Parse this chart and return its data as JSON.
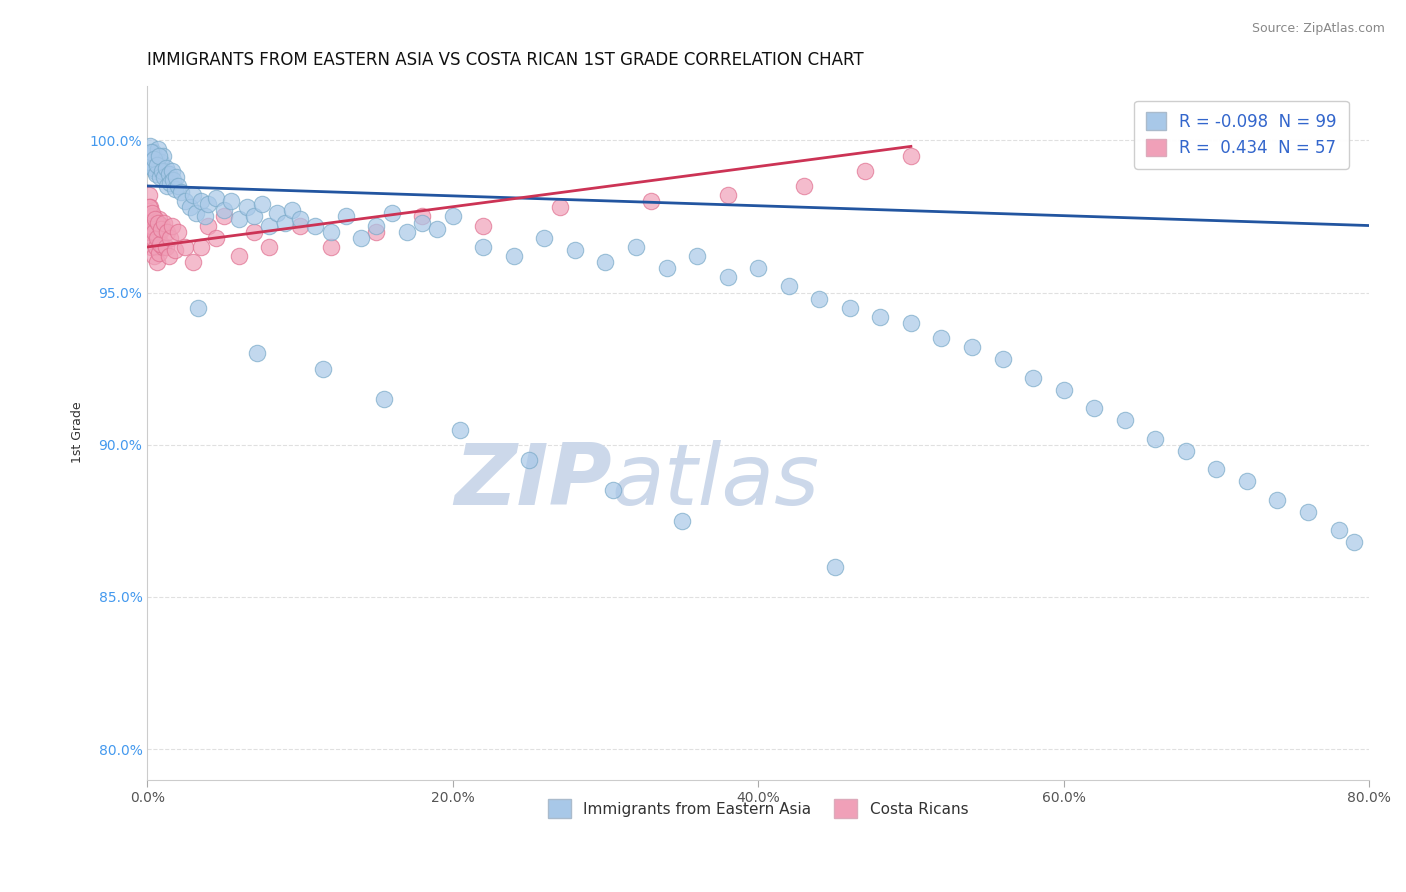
{
  "title": "IMMIGRANTS FROM EASTERN ASIA VS COSTA RICAN 1ST GRADE CORRELATION CHART",
  "source": "Source: ZipAtlas.com",
  "ylabel": "1st Grade",
  "xlim": [
    0.0,
    80.0
  ],
  "ylim": [
    79.0,
    101.8
  ],
  "x_ticks": [
    0.0,
    20.0,
    40.0,
    60.0,
    80.0
  ],
  "x_tick_labels": [
    "0.0%",
    "20.0%",
    "40.0%",
    "60.0%",
    "80.0%"
  ],
  "y_ticks": [
    80.0,
    85.0,
    90.0,
    95.0,
    100.0
  ],
  "y_tick_labels": [
    "80.0%",
    "85.0%",
    "90.0%",
    "95.0%",
    "100.0%"
  ],
  "series_blue": {
    "label": "Immigrants from Eastern Asia",
    "color": "#a8c8e8",
    "edge_color": "#7aaac8",
    "R": -0.098,
    "N": 99,
    "line_color": "#2255a0",
    "x": [
      0.1,
      0.2,
      0.3,
      0.4,
      0.5,
      0.6,
      0.7,
      0.8,
      0.9,
      1.0,
      0.15,
      0.25,
      0.35,
      0.45,
      0.55,
      0.65,
      0.75,
      0.85,
      0.95,
      1.1,
      1.2,
      1.3,
      1.4,
      1.5,
      1.6,
      1.7,
      1.8,
      1.9,
      2.0,
      2.2,
      2.5,
      2.8,
      3.0,
      3.2,
      3.5,
      3.8,
      4.0,
      4.5,
      5.0,
      5.5,
      6.0,
      6.5,
      7.0,
      7.5,
      8.0,
      8.5,
      9.0,
      9.5,
      10.0,
      11.0,
      12.0,
      13.0,
      14.0,
      15.0,
      16.0,
      17.0,
      18.0,
      19.0,
      20.0,
      22.0,
      24.0,
      26.0,
      28.0,
      30.0,
      32.0,
      34.0,
      36.0,
      38.0,
      40.0,
      42.0,
      44.0,
      46.0,
      48.0,
      50.0,
      52.0,
      54.0,
      56.0,
      58.0,
      60.0,
      62.0,
      64.0,
      66.0,
      68.0,
      70.0,
      72.0,
      74.0,
      76.0,
      78.0,
      79.0,
      3.3,
      7.2,
      11.5,
      15.5,
      20.5,
      25.0,
      30.5,
      35.0,
      45.0
    ],
    "y": [
      99.5,
      99.8,
      99.2,
      99.6,
      99.0,
      99.4,
      99.7,
      99.1,
      99.3,
      99.5,
      99.3,
      99.6,
      99.1,
      99.4,
      98.9,
      99.2,
      99.5,
      98.8,
      99.0,
      98.8,
      99.1,
      98.5,
      98.9,
      98.6,
      99.0,
      98.7,
      98.4,
      98.8,
      98.5,
      98.3,
      98.0,
      97.8,
      98.2,
      97.6,
      98.0,
      97.5,
      97.9,
      98.1,
      97.7,
      98.0,
      97.4,
      97.8,
      97.5,
      97.9,
      97.2,
      97.6,
      97.3,
      97.7,
      97.4,
      97.2,
      97.0,
      97.5,
      96.8,
      97.2,
      97.6,
      97.0,
      97.3,
      97.1,
      97.5,
      96.5,
      96.2,
      96.8,
      96.4,
      96.0,
      96.5,
      95.8,
      96.2,
      95.5,
      95.8,
      95.2,
      94.8,
      94.5,
      94.2,
      94.0,
      93.5,
      93.2,
      92.8,
      92.2,
      91.8,
      91.2,
      90.8,
      90.2,
      89.8,
      89.2,
      88.8,
      88.2,
      87.8,
      87.2,
      86.8,
      94.5,
      93.0,
      92.5,
      91.5,
      90.5,
      89.5,
      88.5,
      87.5,
      86.0
    ]
  },
  "series_pink": {
    "label": "Costa Ricans",
    "color": "#f0a0b8",
    "edge_color": "#e07090",
    "R": 0.434,
    "N": 57,
    "line_color": "#cc3355",
    "x": [
      0.05,
      0.1,
      0.15,
      0.2,
      0.25,
      0.3,
      0.35,
      0.4,
      0.45,
      0.5,
      0.55,
      0.6,
      0.65,
      0.7,
      0.75,
      0.8,
      0.85,
      0.9,
      0.95,
      1.0,
      0.12,
      0.22,
      0.32,
      0.42,
      0.52,
      0.62,
      0.72,
      0.82,
      0.92,
      1.1,
      1.2,
      1.3,
      1.4,
      1.5,
      1.6,
      1.8,
      2.0,
      2.5,
      3.0,
      3.5,
      4.0,
      4.5,
      5.0,
      6.0,
      7.0,
      8.0,
      10.0,
      12.0,
      15.0,
      18.0,
      22.0,
      27.0,
      33.0,
      38.0,
      43.0,
      47.0,
      50.0
    ],
    "y": [
      97.5,
      98.2,
      97.0,
      97.8,
      96.5,
      97.2,
      96.8,
      97.5,
      96.2,
      97.0,
      96.5,
      97.2,
      96.0,
      96.8,
      97.4,
      96.3,
      97.0,
      96.6,
      97.2,
      96.5,
      97.8,
      97.2,
      97.6,
      97.0,
      97.4,
      96.8,
      97.3,
      96.6,
      97.1,
      97.3,
      96.5,
      97.0,
      96.2,
      96.8,
      97.2,
      96.4,
      97.0,
      96.5,
      96.0,
      96.5,
      97.2,
      96.8,
      97.5,
      96.2,
      97.0,
      96.5,
      97.2,
      96.5,
      97.0,
      97.5,
      97.2,
      97.8,
      98.0,
      98.2,
      98.5,
      99.0,
      99.5
    ]
  },
  "watermark_zi": "ZIP",
  "watermark_atlas": "atlas",
  "watermark_color": "#ccd8ea",
  "background_color": "#ffffff",
  "grid_color": "#dddddd",
  "title_fontsize": 12,
  "axis_label_fontsize": 9,
  "tick_fontsize": 10,
  "legend_fontsize": 12
}
